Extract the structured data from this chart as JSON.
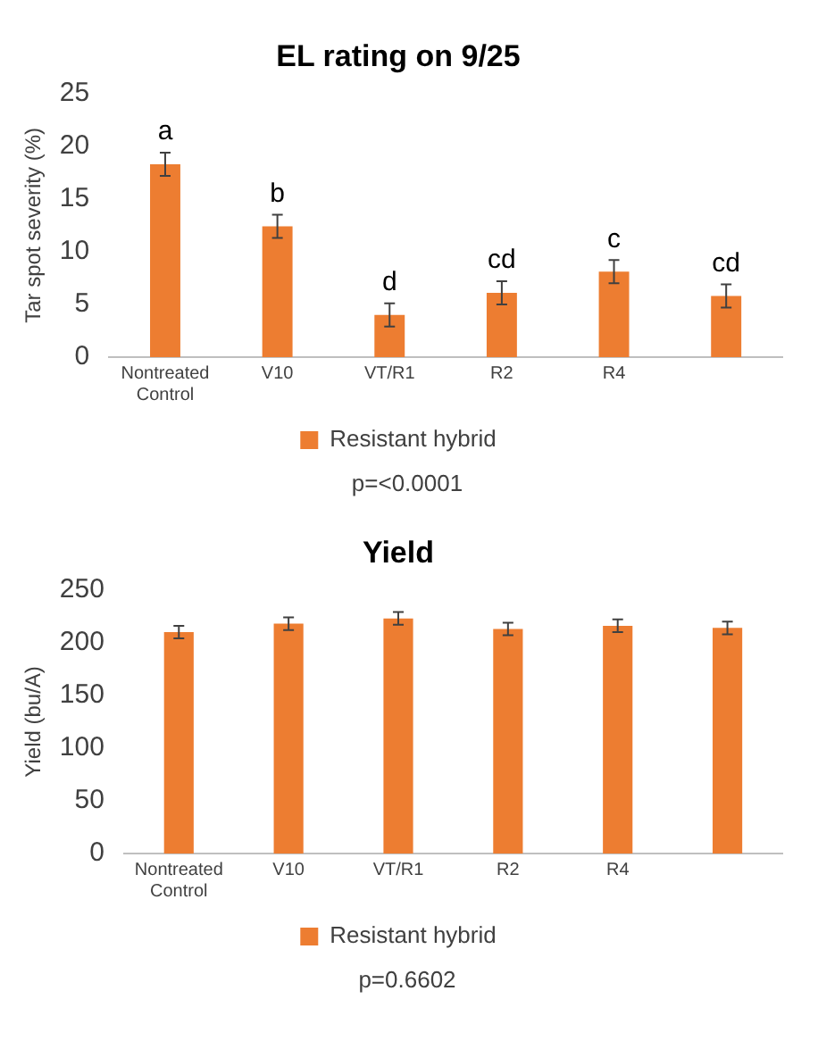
{
  "chart_data": [
    {
      "type": "bar",
      "title": "EL rating on 9/25",
      "ylabel": "Tar spot severity (%)",
      "categories": [
        "Nontreated Control",
        "V10",
        "VT/R1",
        "R2",
        "R4",
        null
      ],
      "series": [
        {
          "name": "Resistant hybrid",
          "color": "#ed7d31",
          "values": [
            18.3,
            12.4,
            4.0,
            6.1,
            8.1,
            5.8
          ],
          "errors": [
            1.1,
            1.1,
            1.1,
            1.1,
            1.1,
            1.1
          ],
          "value_labels": [
            "a",
            "b",
            "d",
            "cd",
            "c",
            "cd"
          ]
        }
      ],
      "ylim": [
        0,
        25
      ],
      "yticks": [
        0,
        5,
        10,
        15,
        20,
        25
      ],
      "grid": false,
      "legend": "bottom",
      "annotations": [
        "p=<0.0001"
      ]
    },
    {
      "type": "bar",
      "title": "Yield",
      "ylabel": "Yield (bu/A)",
      "categories": [
        "Nontreated Control",
        "V10",
        "VT/R1",
        "R2",
        "R4",
        null
      ],
      "series": [
        {
          "name": "Resistant hybrid",
          "color": "#ed7d31",
          "values": [
            210,
            218,
            223,
            213,
            216,
            214
          ],
          "errors": [
            6,
            6,
            6,
            6,
            6,
            6
          ]
        }
      ],
      "ylim": [
        0,
        250
      ],
      "yticks": [
        0,
        50,
        100,
        150,
        200,
        250
      ],
      "grid": false,
      "legend": "bottom",
      "annotations": [
        "p=0.6602"
      ]
    }
  ]
}
